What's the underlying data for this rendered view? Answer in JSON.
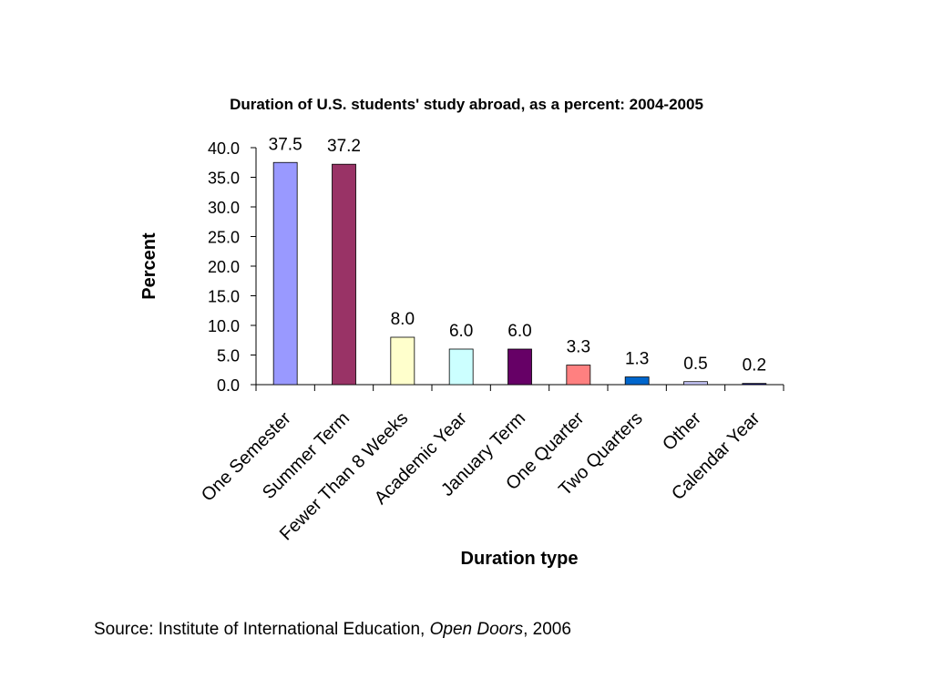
{
  "chart_data": {
    "type": "bar",
    "title": "Duration of U.S. students' study abroad, as a percent: 2004-2005",
    "xlabel": "Duration type",
    "ylabel": "Percent",
    "ylim": [
      0,
      40
    ],
    "yticks": [
      "0.0",
      "5.0",
      "10.0",
      "15.0",
      "20.0",
      "25.0",
      "30.0",
      "35.0",
      "40.0"
    ],
    "categories": [
      "One Semester",
      "Summer Term",
      "Fewer Than 8 Weeks",
      "Academic Year",
      "January Term",
      "One Quarter",
      "Two Quarters",
      "Other",
      "Calendar Year"
    ],
    "values": [
      37.5,
      37.2,
      8.0,
      6.0,
      6.0,
      3.3,
      1.3,
      0.5,
      0.2
    ],
    "data_labels": [
      "37.5",
      "37.2",
      "8.0",
      "6.0",
      "6.0",
      "3.3",
      "1.3",
      "0.5",
      "0.2"
    ],
    "colors": [
      "#9999FF",
      "#993366",
      "#FFFFCC",
      "#CCFFFF",
      "#660066",
      "#FF8080",
      "#0066CC",
      "#CCCCFF",
      "#000080"
    ],
    "grid": false,
    "legend": "none"
  },
  "source": {
    "prefix": "Source: Institute of International Education, ",
    "publication": "Open Doors",
    "suffix": ", 2006"
  }
}
